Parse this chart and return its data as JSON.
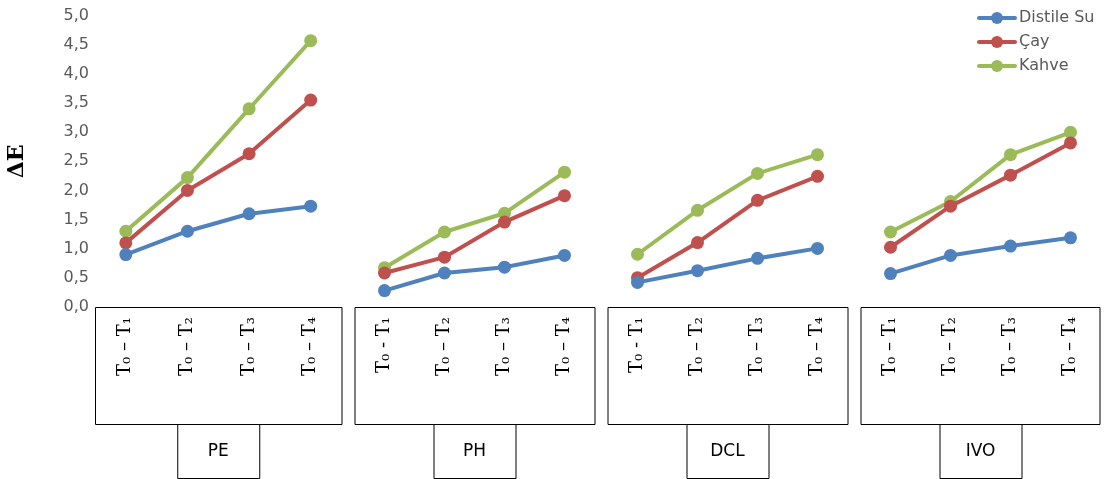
{
  "chart_data": [
    {
      "type": "line",
      "xlabel": "PE",
      "ylabel": "ΔE",
      "categories": [
        "T₀ – T₁",
        "T₀ – T₂",
        "T₀ – T₃",
        "T₀ – T₄"
      ],
      "ylim": [
        0,
        5
      ],
      "yticks": [
        {
          "value": 0,
          "label": "0,0"
        },
        {
          "value": 0.5,
          "label": "0,5"
        },
        {
          "value": 1,
          "label": "1,0"
        },
        {
          "value": 1.5,
          "label": "1,5"
        },
        {
          "value": 2,
          "label": "2,0"
        },
        {
          "value": 2.5,
          "label": "2,5"
        },
        {
          "value": 3,
          "label": "3,0"
        },
        {
          "value": 3.5,
          "label": "3,5"
        },
        {
          "value": 4,
          "label": "4,0"
        },
        {
          "value": 4.5,
          "label": "4,5"
        },
        {
          "value": 5,
          "label": "5,0"
        }
      ],
      "grid": false,
      "marker": "circle",
      "legend": false,
      "series": [
        {
          "color": "#4f81bd",
          "values": [
            0.9,
            1.3,
            1.6,
            1.73
          ]
        },
        {
          "color": "#c0504d",
          "values": [
            1.1,
            2.0,
            2.63,
            3.55
          ]
        },
        {
          "color": "#9bbb59",
          "values": [
            1.3,
            2.22,
            3.4,
            4.57
          ]
        }
      ]
    },
    {
      "type": "line",
      "xlabel": "PH",
      "categories": [
        "T₀ - T₁",
        "T₀ – T₂",
        "T₀ – T₃",
        "T₀ – T₄"
      ],
      "ylim": [
        0,
        5
      ],
      "tick_labels": "x",
      "grid": false,
      "marker": "circle",
      "legend": false,
      "series": [
        {
          "color": "#4f81bd",
          "values": [
            0.28,
            0.58,
            0.68,
            0.88
          ]
        },
        {
          "color": "#c0504d",
          "values": [
            0.58,
            0.85,
            1.45,
            1.9
          ]
        },
        {
          "color": "#9bbb59",
          "values": [
            0.67,
            1.28,
            1.6,
            2.3
          ]
        }
      ]
    },
    {
      "type": "line",
      "xlabel": "DCL",
      "categories": [
        "T₀ - T₁",
        "T₀ – T₂",
        "T₀ – T₃",
        "T₀ – T₄"
      ],
      "ylim": [
        0,
        5
      ],
      "tick_labels": "x",
      "grid": false,
      "marker": "circle",
      "legend": false,
      "series": [
        {
          "color": "#4f81bd",
          "values": [
            0.42,
            0.62,
            0.83,
            1.0
          ]
        },
        {
          "color": "#c0504d",
          "values": [
            0.5,
            1.1,
            1.82,
            2.23
          ]
        },
        {
          "color": "#9bbb59",
          "values": [
            0.9,
            1.65,
            2.28,
            2.6
          ]
        }
      ]
    },
    {
      "type": "line",
      "xlabel": "IVO",
      "categories": [
        "T₀ – T₁",
        "T₀ – T₂",
        "T₀ – T₃",
        "T₀ – T₄"
      ],
      "ylim": [
        0,
        5
      ],
      "tick_labels": "x",
      "grid": false,
      "marker": "circle",
      "legend": "top right",
      "series": [
        {
          "name": "Distile Su",
          "color": "#4f81bd",
          "values": [
            0.57,
            0.88,
            1.04,
            1.18
          ]
        },
        {
          "name": "Çay",
          "color": "#c0504d",
          "values": [
            1.02,
            1.72,
            2.25,
            2.8
          ]
        },
        {
          "name": "Kahve",
          "color": "#9bbb59",
          "values": [
            1.28,
            1.8,
            2.6,
            2.98
          ]
        }
      ]
    }
  ]
}
